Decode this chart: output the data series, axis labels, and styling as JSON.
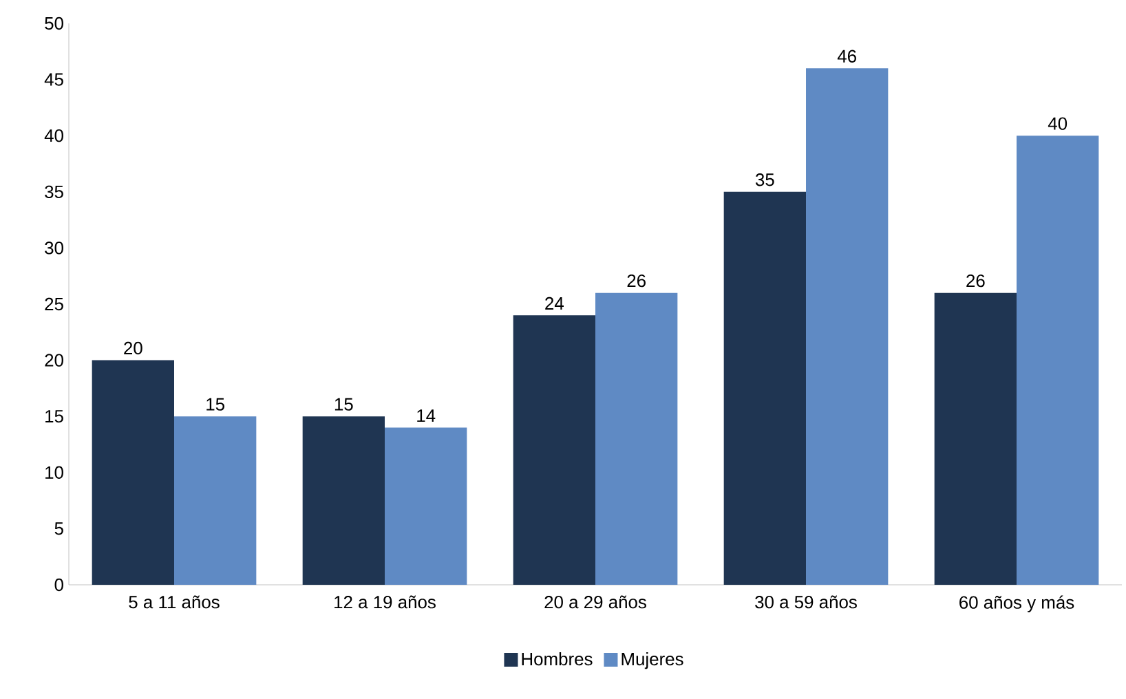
{
  "chart_data": {
    "type": "bar",
    "categories": [
      "5 a 11 años",
      "12 a 19 años",
      "20 a 29 años",
      "30 a 59 años",
      "60 años y más"
    ],
    "series": [
      {
        "name": "Hombres",
        "color": "#1f3552",
        "values": [
          20,
          15,
          24,
          35,
          26
        ]
      },
      {
        "name": "Mujeres",
        "color": "#5f8ac4",
        "values": [
          15,
          14,
          26,
          46,
          40
        ]
      }
    ],
    "ylim": [
      0,
      50
    ],
    "yticks": [
      0,
      5,
      10,
      15,
      20,
      25,
      30,
      35,
      40,
      45,
      50
    ],
    "data_labels": true,
    "legend": "bottom",
    "grid": false
  }
}
